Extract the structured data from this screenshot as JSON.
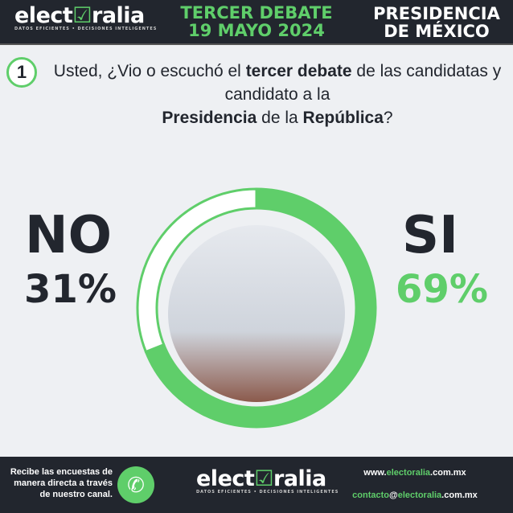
{
  "header": {
    "logo": {
      "pre": "elect",
      "check": "☑",
      "post": "ralia",
      "tagline": "DATOS EFICIENTES • DECISIONES INTELIGENTES"
    },
    "event_line1": "TERCER DEBATE",
    "event_line2": "19 MAYO 2024",
    "title_line1": "PRESIDENCIA",
    "title_line2": "DE MÉXICO"
  },
  "question": {
    "number": "1",
    "parts": [
      "Usted, ¿Vio o escuchó el ",
      "tercer debate",
      " de las candidatas y candidato a la ",
      "Presidencia",
      " de la ",
      "República",
      "?"
    ]
  },
  "chart_data": {
    "type": "pie",
    "categories": [
      "SI",
      "NO"
    ],
    "values": [
      69,
      31
    ],
    "labels": [
      "69%",
      "31%"
    ],
    "colors": {
      "SI": "#5fce6a",
      "NO": "#ffffff"
    },
    "style": "donut"
  },
  "footer": {
    "cta": "Recibe las encuestas de manera directa a través de nuestro canal.",
    "whatsapp_icon": "whatsapp-icon",
    "website": {
      "pre": "www.",
      "brand": "electoralia",
      "post": ".com.mx"
    },
    "email": {
      "pre": "contacto",
      "at": "@",
      "brand": "electoralia",
      "post": ".com.mx"
    }
  }
}
